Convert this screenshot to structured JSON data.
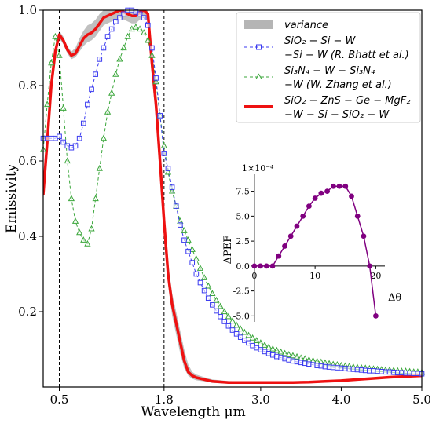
{
  "chart_data": {
    "type": "line",
    "xlabel": "Wavelength μm",
    "ylabel": "Emissivity",
    "xlim": [
      0.3,
      5.0
    ],
    "ylim": [
      0.0,
      1.0
    ],
    "x_ticks": [
      0.5,
      1.8,
      3.0,
      4.0,
      5.0
    ],
    "x_tick_labels": [
      "0.5",
      "1.8",
      "3.0",
      "4.0",
      "5.0"
    ],
    "y_ticks": [
      0.2,
      0.4,
      0.6,
      0.8,
      1.0
    ],
    "y_tick_labels": [
      "0.2",
      "0.4",
      "0.6",
      "0.8",
      "1.0"
    ],
    "vlines": [
      0.5,
      1.8
    ],
    "legend_placement": "top-right",
    "legend": [
      {
        "id": "variance",
        "lines": [
          "variance"
        ]
      },
      {
        "id": "bhatt",
        "lines": [
          "SiO₂ − Si − W",
          "−Si − W (R. Bhatt et al.)"
        ]
      },
      {
        "id": "zhang",
        "lines": [
          "Si₃N₄ − W − Si₃N₄",
          "−W (W. Zhang et al.)"
        ]
      },
      {
        "id": "proposed",
        "lines": [
          "SiO₂ − ZnS − Ge − MgF₂",
          "−W − Si − SiO₂ − W"
        ]
      }
    ],
    "series": [
      {
        "id": "bhatt",
        "color": "#3a3af0",
        "marker": "square",
        "style": "dashed",
        "x": [
          0.3,
          0.35,
          0.4,
          0.45,
          0.5,
          0.55,
          0.6,
          0.65,
          0.7,
          0.75,
          0.8,
          0.85,
          0.9,
          0.95,
          1.0,
          1.05,
          1.1,
          1.15,
          1.2,
          1.25,
          1.3,
          1.35,
          1.4,
          1.45,
          1.5,
          1.55,
          1.6,
          1.65,
          1.7,
          1.75,
          1.8,
          1.85,
          1.9,
          1.95,
          2.0,
          2.05,
          2.1,
          2.15,
          2.2,
          2.25,
          2.3,
          2.35,
          2.4,
          2.45,
          2.5,
          2.55,
          2.6,
          2.65,
          2.7,
          2.75,
          2.8,
          2.85,
          2.9,
          2.95,
          3.0,
          3.05,
          3.1,
          3.15,
          3.2,
          3.25,
          3.3,
          3.35,
          3.4,
          3.45,
          3.5,
          3.55,
          3.6,
          3.65,
          3.7,
          3.75,
          3.8,
          3.85,
          3.9,
          3.95,
          4.0,
          4.05,
          4.1,
          4.15,
          4.2,
          4.25,
          4.3,
          4.35,
          4.4,
          4.45,
          4.5,
          4.55,
          4.6,
          4.65,
          4.7,
          4.75,
          4.8,
          4.85,
          4.9,
          4.95,
          5.0
        ],
        "y": [
          0.66,
          0.66,
          0.66,
          0.66,
          0.665,
          0.65,
          0.64,
          0.635,
          0.64,
          0.66,
          0.7,
          0.75,
          0.79,
          0.83,
          0.87,
          0.9,
          0.93,
          0.95,
          0.97,
          0.98,
          0.99,
          1.0,
          1.0,
          0.995,
          0.99,
          0.98,
          0.96,
          0.9,
          0.82,
          0.72,
          0.62,
          0.58,
          0.53,
          0.48,
          0.43,
          0.39,
          0.36,
          0.33,
          0.3,
          0.277,
          0.256,
          0.236,
          0.218,
          0.202,
          0.187,
          0.174,
          0.162,
          0.151,
          0.141,
          0.132,
          0.124,
          0.117,
          0.11,
          0.104,
          0.099,
          0.094,
          0.089,
          0.085,
          0.081,
          0.078,
          0.075,
          0.072,
          0.069,
          0.067,
          0.065,
          0.063,
          0.061,
          0.059,
          0.057,
          0.056,
          0.054,
          0.053,
          0.052,
          0.051,
          0.05,
          0.049,
          0.048,
          0.047,
          0.046,
          0.045,
          0.044,
          0.043,
          0.043,
          0.042,
          0.041,
          0.04,
          0.04,
          0.039,
          0.038,
          0.038,
          0.037,
          0.037,
          0.036,
          0.036,
          0.035
        ]
      },
      {
        "id": "zhang",
        "color": "#3aa63a",
        "marker": "triangle",
        "style": "dashed",
        "x": [
          0.3,
          0.35,
          0.4,
          0.45,
          0.5,
          0.55,
          0.6,
          0.65,
          0.7,
          0.75,
          0.8,
          0.85,
          0.9,
          0.95,
          1.0,
          1.05,
          1.1,
          1.15,
          1.2,
          1.25,
          1.3,
          1.35,
          1.4,
          1.45,
          1.5,
          1.55,
          1.6,
          1.65,
          1.7,
          1.75,
          1.8,
          1.85,
          1.9,
          1.95,
          2.0,
          2.05,
          2.1,
          2.15,
          2.2,
          2.25,
          2.3,
          2.35,
          2.4,
          2.45,
          2.5,
          2.55,
          2.6,
          2.65,
          2.7,
          2.75,
          2.8,
          2.85,
          2.9,
          2.95,
          3.0,
          3.05,
          3.1,
          3.15,
          3.2,
          3.25,
          3.3,
          3.35,
          3.4,
          3.45,
          3.5,
          3.55,
          3.6,
          3.65,
          3.7,
          3.75,
          3.8,
          3.85,
          3.9,
          3.95,
          4.0,
          4.05,
          4.1,
          4.15,
          4.2,
          4.25,
          4.3,
          4.35,
          4.4,
          4.45,
          4.5,
          4.55,
          4.6,
          4.65,
          4.7,
          4.75,
          4.8,
          4.85,
          4.9,
          4.95,
          5.0
        ],
        "y": [
          0.63,
          0.75,
          0.86,
          0.93,
          0.88,
          0.74,
          0.6,
          0.5,
          0.44,
          0.41,
          0.39,
          0.38,
          0.42,
          0.5,
          0.58,
          0.66,
          0.73,
          0.78,
          0.83,
          0.87,
          0.9,
          0.93,
          0.95,
          0.955,
          0.95,
          0.94,
          0.92,
          0.88,
          0.81,
          0.72,
          0.64,
          0.57,
          0.52,
          0.48,
          0.44,
          0.415,
          0.39,
          0.365,
          0.34,
          0.315,
          0.29,
          0.268,
          0.248,
          0.23,
          0.214,
          0.2,
          0.187,
          0.175,
          0.164,
          0.154,
          0.145,
          0.137,
          0.13,
          0.123,
          0.117,
          0.111,
          0.106,
          0.101,
          0.097,
          0.093,
          0.089,
          0.086,
          0.083,
          0.08,
          0.077,
          0.075,
          0.072,
          0.07,
          0.068,
          0.066,
          0.064,
          0.062,
          0.06,
          0.059,
          0.057,
          0.056,
          0.055,
          0.053,
          0.052,
          0.051,
          0.05,
          0.049,
          0.048,
          0.047,
          0.046,
          0.045,
          0.045,
          0.044,
          0.043,
          0.042,
          0.042,
          0.041,
          0.04,
          0.04,
          0.039
        ]
      },
      {
        "id": "proposed",
        "color": "#ee1111",
        "marker": "none",
        "style": "solid",
        "x": [
          0.3,
          0.35,
          0.4,
          0.45,
          0.5,
          0.55,
          0.6,
          0.65,
          0.7,
          0.75,
          0.8,
          0.85,
          0.9,
          0.95,
          1.0,
          1.05,
          1.1,
          1.15,
          1.2,
          1.25,
          1.3,
          1.35,
          1.4,
          1.45,
          1.5,
          1.55,
          1.6,
          1.65,
          1.7,
          1.75,
          1.8,
          1.85,
          1.9,
          1.95,
          2.0,
          2.05,
          2.1,
          2.15,
          2.2,
          2.3,
          2.4,
          2.6,
          2.8,
          3.0,
          3.2,
          3.4,
          3.6,
          3.8,
          4.0,
          4.2,
          4.4,
          4.6,
          4.8,
          5.0
        ],
        "y": [
          0.51,
          0.65,
          0.8,
          0.89,
          0.935,
          0.92,
          0.895,
          0.88,
          0.885,
          0.905,
          0.925,
          0.935,
          0.94,
          0.95,
          0.965,
          0.98,
          0.985,
          0.99,
          0.995,
          1.0,
          0.995,
          0.99,
          0.985,
          0.985,
          0.995,
          1.0,
          0.99,
          0.86,
          0.75,
          0.6,
          0.44,
          0.3,
          0.22,
          0.17,
          0.12,
          0.07,
          0.04,
          0.03,
          0.025,
          0.02,
          0.015,
          0.012,
          0.012,
          0.012,
          0.012,
          0.012,
          0.013,
          0.015,
          0.017,
          0.02,
          0.023,
          0.026,
          0.028,
          0.03
        ]
      },
      {
        "id": "variance",
        "color": "#b5b5b5",
        "type": "band",
        "x": [
          0.3,
          0.35,
          0.4,
          0.45,
          0.5,
          0.55,
          0.6,
          0.65,
          0.7,
          0.75,
          0.8,
          0.85,
          0.9,
          0.95,
          1.0,
          1.05,
          1.1,
          1.15,
          1.2,
          1.25,
          1.3,
          1.35,
          1.4,
          1.45,
          1.5,
          1.55,
          1.6,
          1.65,
          1.7,
          1.75,
          1.8,
          1.85,
          1.9,
          1.95,
          2.0,
          2.05,
          2.1,
          2.15,
          2.2,
          2.3,
          2.4,
          2.6,
          2.8,
          3.0,
          3.2,
          3.4,
          3.6,
          3.8,
          4.0,
          4.2,
          4.4,
          4.6,
          4.8,
          5.0
        ],
        "upper": [
          0.53,
          0.67,
          0.82,
          0.905,
          0.945,
          0.93,
          0.905,
          0.89,
          0.9,
          0.925,
          0.945,
          0.96,
          0.965,
          0.975,
          0.99,
          1.0,
          1.0,
          1.0,
          1.0,
          1.0,
          1.0,
          1.0,
          1.0,
          1.0,
          1.0,
          1.0,
          1.0,
          0.9,
          0.79,
          0.64,
          0.48,
          0.33,
          0.25,
          0.2,
          0.15,
          0.1,
          0.06,
          0.04,
          0.033,
          0.026,
          0.02,
          0.016,
          0.015,
          0.015,
          0.015,
          0.015,
          0.016,
          0.018,
          0.02,
          0.023,
          0.026,
          0.029,
          0.031,
          0.033
        ],
        "lower": [
          0.49,
          0.63,
          0.78,
          0.875,
          0.925,
          0.91,
          0.885,
          0.87,
          0.875,
          0.89,
          0.905,
          0.915,
          0.92,
          0.93,
          0.945,
          0.96,
          0.965,
          0.97,
          0.975,
          0.98,
          0.975,
          0.97,
          0.965,
          0.965,
          0.975,
          0.98,
          0.97,
          0.82,
          0.71,
          0.56,
          0.4,
          0.27,
          0.19,
          0.14,
          0.09,
          0.05,
          0.03,
          0.022,
          0.018,
          0.015,
          0.011,
          0.009,
          0.009,
          0.009,
          0.009,
          0.009,
          0.01,
          0.012,
          0.014,
          0.017,
          0.02,
          0.023,
          0.025,
          0.027
        ]
      }
    ],
    "inset": {
      "type": "line",
      "xlabel": "Δθ",
      "ylabel": "ΔPEF",
      "multiplier": "1×10⁻⁴",
      "xlim": [
        -0.5,
        21.5
      ],
      "ylim": [
        -5.6,
        9.2
      ],
      "x_ticks": [
        0,
        10,
        20
      ],
      "x_tick_labels": [
        "0",
        "10",
        "20"
      ],
      "y_ticks": [
        -5.0,
        -2.5,
        0.0,
        2.5,
        5.0,
        7.5
      ],
      "y_tick_labels": [
        "-5.0",
        "-2.5",
        "0.0",
        "2.5",
        "5.0",
        "7.5"
      ],
      "color": "#800080",
      "x": [
        0,
        1,
        2,
        3,
        4,
        5,
        6,
        7,
        8,
        9,
        10,
        11,
        12,
        13,
        14,
        15,
        16,
        17,
        18,
        19,
        20
      ],
      "y": [
        0,
        0,
        0,
        0,
        1,
        2,
        3,
        4,
        5,
        6,
        6.8,
        7.3,
        7.5,
        8,
        8,
        8,
        7,
        5,
        3,
        0,
        -5
      ]
    }
  }
}
